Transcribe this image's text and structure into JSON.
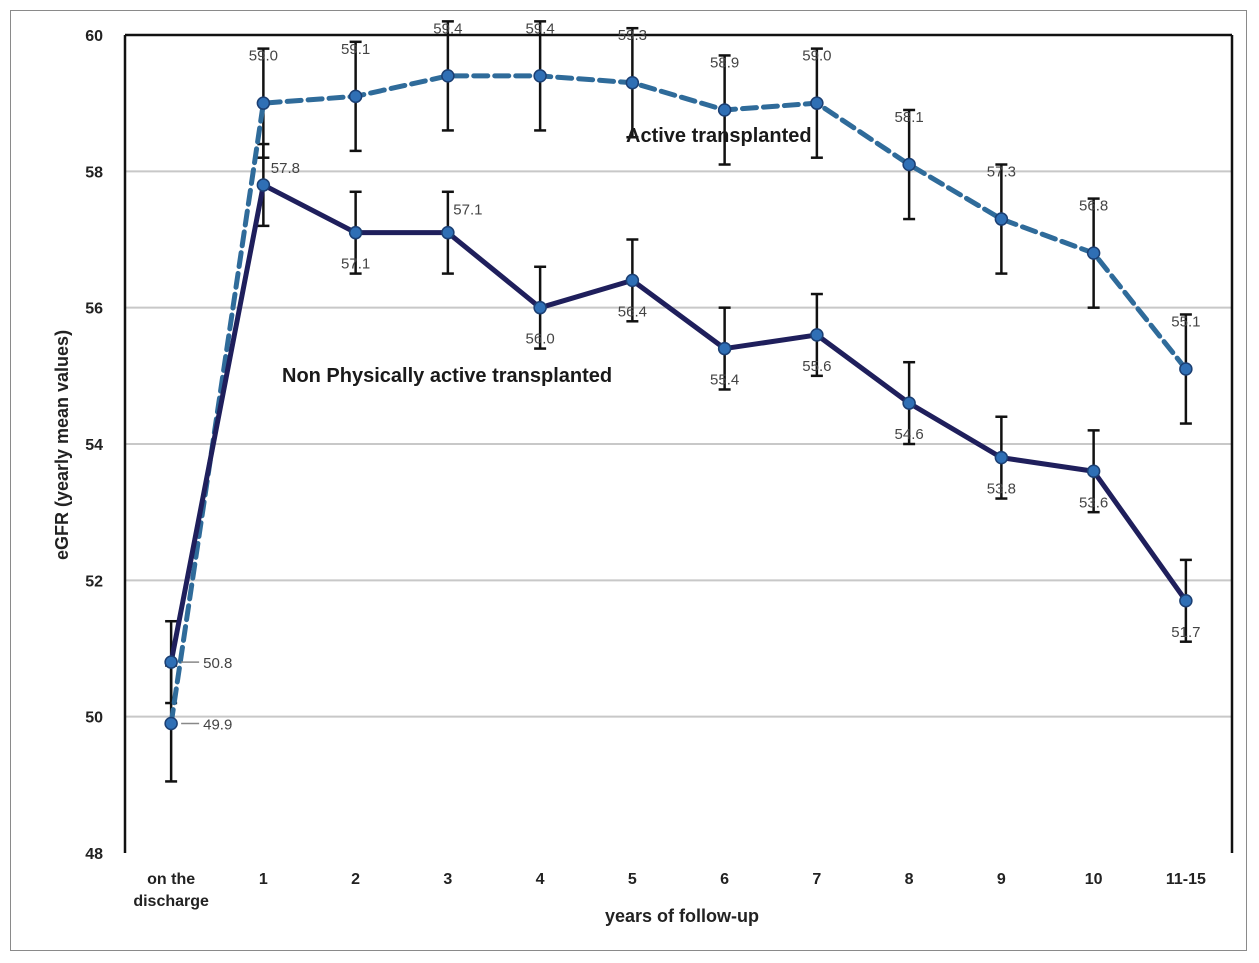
{
  "chart_data": {
    "type": "line",
    "title": "",
    "xlabel": "years of follow-up",
    "ylabel": "eGFR (yearly mean values)",
    "categories": [
      "on the discharge",
      "1",
      "2",
      "3",
      "4",
      "5",
      "6",
      "7",
      "8",
      "9",
      "10",
      "11-15"
    ],
    "ylim": [
      48,
      60
    ],
    "yticks": [
      "48",
      "50",
      "52",
      "54",
      "56",
      "58",
      "60"
    ],
    "grid": true,
    "legend": "none",
    "series": [
      {
        "name": "Active transplanted",
        "style": "dashed",
        "color": "#2f6b9a",
        "values": [
          49.9,
          59.0,
          59.1,
          59.4,
          59.4,
          59.3,
          58.9,
          59.0,
          58.1,
          57.3,
          56.8,
          55.1
        ],
        "labels": [
          "49.9",
          "59.0",
          "59.1",
          "59.4",
          "59.4",
          "59.3",
          "58.9",
          "59.0",
          "58.1",
          "57.3",
          "56.8",
          "55.1"
        ],
        "error": [
          0.85,
          0.8,
          0.8,
          0.8,
          0.8,
          0.8,
          0.8,
          0.8,
          0.8,
          0.8,
          0.8,
          0.8
        ]
      },
      {
        "name": "Non Physically active transplanted",
        "style": "solid",
        "color": "#1f1f5c",
        "values": [
          50.8,
          57.8,
          57.1,
          57.1,
          56.0,
          56.4,
          55.4,
          55.6,
          54.6,
          53.8,
          53.6,
          51.7
        ],
        "labels": [
          "50.8",
          "57.8",
          "57.1",
          "57.1",
          "56.0",
          "56.4",
          "55.4",
          "55.6",
          "54.6",
          "53.8",
          "53.6",
          "51.7"
        ],
        "error": [
          0.6,
          0.6,
          0.6,
          0.6,
          0.6,
          0.6,
          0.6,
          0.6,
          0.6,
          0.6,
          0.6,
          0.6
        ]
      }
    ]
  }
}
